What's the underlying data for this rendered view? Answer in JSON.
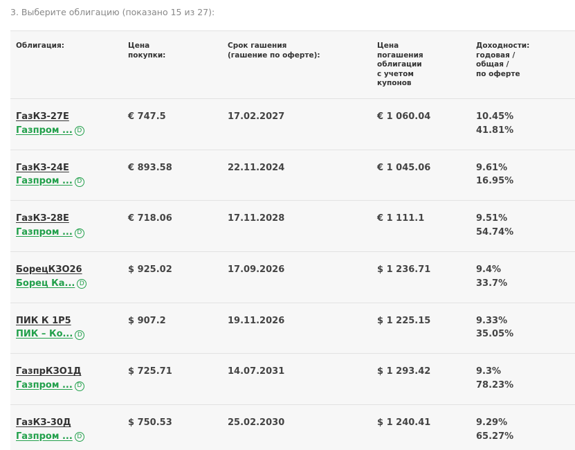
{
  "section_title": "3. Выберите облигацию (показано 15 из 27):",
  "header": {
    "bond": "Облигация:",
    "price_line1": "Цена",
    "price_line2": "покупки:",
    "maturity_line1": "Срок гашения",
    "maturity_line2": "(гашение по оферте):",
    "redemption_line1": "Цена",
    "redemption_line2": "погашения",
    "redemption_line3": "облигации",
    "redemption_line4": "с учетом",
    "redemption_line5": "купонов",
    "yield_line1": "Доходности:",
    "yield_line2": "годовая /",
    "yield_line3": "общая /",
    "yield_line4": "по оферте"
  },
  "badge_label": "D",
  "rows": [
    {
      "name": "ГазКЗ-27Е",
      "issuer": "Газпром ...",
      "price": "€ 747.5",
      "maturity": "17.02.2027",
      "redemption": "€ 1 060.04",
      "yield_annual": "10.45%",
      "yield_total": "41.81%"
    },
    {
      "name": "ГазКЗ-24Е",
      "issuer": "Газпром ...",
      "price": "€ 893.58",
      "maturity": "22.11.2024",
      "redemption": "€ 1 045.06",
      "yield_annual": "9.61%",
      "yield_total": "16.95%"
    },
    {
      "name": "ГазКЗ-28Е",
      "issuer": "Газпром ...",
      "price": "€ 718.06",
      "maturity": "17.11.2028",
      "redemption": "€ 1 111.1",
      "yield_annual": "9.51%",
      "yield_total": "54.74%"
    },
    {
      "name": "БорецКЗО26",
      "issuer": "Борец Ка...",
      "price": "$ 925.02",
      "maturity": "17.09.2026",
      "redemption": "$ 1 236.71",
      "yield_annual": "9.4%",
      "yield_total": "33.7%"
    },
    {
      "name": "ПИК К 1Р5",
      "issuer": "ПИК – Ко...",
      "price": "$ 907.2",
      "maturity": "19.11.2026",
      "redemption": "$ 1 225.15",
      "yield_annual": "9.33%",
      "yield_total": "35.05%"
    },
    {
      "name": "ГазпрКЗО1Д",
      "issuer": "Газпром ...",
      "price": "$ 725.71",
      "maturity": "14.07.2031",
      "redemption": "$ 1 293.42",
      "yield_annual": "9.3%",
      "yield_total": "78.23%"
    },
    {
      "name": "ГазКЗ-30Д",
      "issuer": "Газпром ...",
      "price": "$ 750.53",
      "maturity": "25.02.2030",
      "redemption": "$ 1 240.41",
      "yield_annual": "9.29%",
      "yield_total": "65.27%"
    }
  ]
}
